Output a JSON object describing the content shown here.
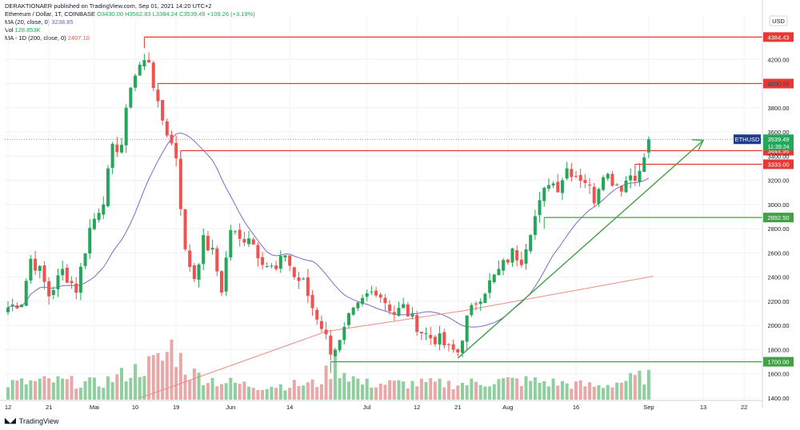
{
  "header": {
    "publisher": "DERAKTIONAER published on TradingView.com, Sep 01, 2021 14:20 UTC+2",
    "symbol": "Ethereum / Dollar, 1T, COINBASE",
    "ohlc": "O3430.00  H3562.83  L3384.24  C3539.49  +109.26 (+3.19%)",
    "ma20": "MA (20, close, 0)",
    "ma20_value": "3238.85",
    "vol": "Vol",
    "vol_value": "128.853K",
    "ma200": "MA - 1D (200, close, 0)",
    "ma200_value": "2407.10"
  },
  "currency": "USD",
  "brand": "TradingView",
  "colors": {
    "up": "#26a65b",
    "down": "#ef5350",
    "vol_up": "#8fce9e",
    "vol_down": "#e8a8a8",
    "ma20": "#7e6bc4",
    "ma200": "#ef8b80",
    "resistance": "#e53935",
    "support": "#43a047",
    "last_price": "#1e3a8a"
  },
  "chart_data": {
    "type": "candlestick",
    "instrument": "ETHUSD",
    "last_price_label": "3539.49",
    "countdown_label": "11:39:24",
    "y_ticks": [
      1400,
      1600,
      1800,
      2000,
      2200,
      2400,
      2600,
      2800,
      3000,
      3200,
      3400,
      3600,
      3800,
      4000,
      4200
    ],
    "y_tick_labels": [
      "1400.00",
      "1600.00",
      "1800.00",
      "2000.00",
      "2200.00",
      "2400.00",
      "2600.00",
      "2800.00",
      "3000.00",
      "3200.00",
      "3400.00",
      "3600.00",
      "3800.00",
      "4000.00",
      "4200.00"
    ],
    "x_ticks": [
      {
        "label": "12",
        "index": 0
      },
      {
        "label": "21",
        "index": 9
      },
      {
        "label": "Mai",
        "index": 19
      },
      {
        "label": "10",
        "index": 28
      },
      {
        "label": "19",
        "index": 37
      },
      {
        "label": "Jun",
        "index": 49
      },
      {
        "label": "14",
        "index": 62
      },
      {
        "label": "Jul",
        "index": 79
      },
      {
        "label": "12",
        "index": 90
      },
      {
        "label": "21",
        "index": 99
      },
      {
        "label": "Aug",
        "index": 110
      },
      {
        "label": "16",
        "index": 125
      },
      {
        "label": "Sep",
        "index": 141
      },
      {
        "label": "13",
        "index": 153
      },
      {
        "label": "22",
        "index": 162
      }
    ],
    "levels": [
      {
        "label": "4384.43",
        "value": 4384.43,
        "kind": "resistance",
        "start": 30
      },
      {
        "label": "4000.00",
        "value": 4000,
        "kind": "resistance",
        "start": 33
      },
      {
        "label": "3444.96",
        "value": 3444.96,
        "kind": "resistance",
        "start": 38
      },
      {
        "label": "3333.00",
        "value": 3333,
        "kind": "resistance",
        "start": 138
      },
      {
        "label": "2892.50",
        "value": 2892.5,
        "kind": "support",
        "start": 118
      },
      {
        "label": "1700.00",
        "value": 1700,
        "kind": "support",
        "start": 71
      }
    ],
    "trendline": {
      "from": {
        "index": 99,
        "value": 1730
      },
      "to": {
        "index": 153,
        "value": 3530
      }
    },
    "ma200_line": [
      {
        "index": 29,
        "value": 1400
      },
      {
        "index": 70,
        "value": 1950
      },
      {
        "index": 100,
        "value": 2120
      },
      {
        "index": 142,
        "value": 2407.1
      }
    ],
    "anchors": [
      [
        0,
        2150
      ],
      [
        3,
        2200
      ],
      [
        5,
        2550
      ],
      [
        7,
        2450
      ],
      [
        9,
        2250
      ],
      [
        12,
        2450
      ],
      [
        15,
        2300
      ],
      [
        18,
        2800
      ],
      [
        21,
        3050
      ],
      [
        23,
        3450
      ],
      [
        25,
        3500
      ],
      [
        27,
        4000
      ],
      [
        29,
        4150
      ],
      [
        31,
        4200
      ],
      [
        33,
        3800
      ],
      [
        35,
        3600
      ],
      [
        37,
        3400
      ],
      [
        39,
        2600
      ],
      [
        41,
        2400
      ],
      [
        43,
        2700
      ],
      [
        45,
        2600
      ],
      [
        47,
        2300
      ],
      [
        49,
        2800
      ],
      [
        51,
        2700
      ],
      [
        53,
        2750
      ],
      [
        55,
        2600
      ],
      [
        57,
        2500
      ],
      [
        59,
        2450
      ],
      [
        61,
        2600
      ],
      [
        63,
        2400
      ],
      [
        65,
        2350
      ],
      [
        67,
        2150
      ],
      [
        69,
        2000
      ],
      [
        71,
        1800
      ],
      [
        73,
        1850
      ],
      [
        75,
        2050
      ],
      [
        77,
        2150
      ],
      [
        79,
        2250
      ],
      [
        81,
        2300
      ],
      [
        83,
        2200
      ],
      [
        85,
        2100
      ],
      [
        87,
        2150
      ],
      [
        89,
        2050
      ],
      [
        91,
        1950
      ],
      [
        93,
        1900
      ],
      [
        95,
        1880
      ],
      [
        97,
        1800
      ],
      [
        99,
        1780
      ],
      [
        101,
        2050
      ],
      [
        103,
        2200
      ],
      [
        105,
        2300
      ],
      [
        107,
        2400
      ],
      [
        109,
        2500
      ],
      [
        111,
        2600
      ],
      [
        113,
        2550
      ],
      [
        115,
        2800
      ],
      [
        117,
        3000
      ],
      [
        119,
        3200
      ],
      [
        121,
        3150
      ],
      [
        123,
        3300
      ],
      [
        125,
        3250
      ],
      [
        127,
        3200
      ],
      [
        129,
        3050
      ],
      [
        131,
        3280
      ],
      [
        133,
        3200
      ],
      [
        135,
        3150
      ],
      [
        137,
        3250
      ],
      [
        139,
        3250
      ],
      [
        141,
        3539.49
      ]
    ],
    "volume_profile": [
      [
        0,
        0.3
      ],
      [
        10,
        0.35
      ],
      [
        20,
        0.3
      ],
      [
        28,
        0.55
      ],
      [
        34,
        0.75
      ],
      [
        36,
        1.0
      ],
      [
        40,
        0.5
      ],
      [
        46,
        0.35
      ],
      [
        55,
        0.25
      ],
      [
        68,
        0.3
      ],
      [
        72,
        0.65
      ],
      [
        78,
        0.3
      ],
      [
        90,
        0.3
      ],
      [
        100,
        0.3
      ],
      [
        108,
        0.35
      ],
      [
        115,
        0.35
      ],
      [
        130,
        0.25
      ],
      [
        141,
        0.45
      ]
    ],
    "candle_count": 142
  }
}
